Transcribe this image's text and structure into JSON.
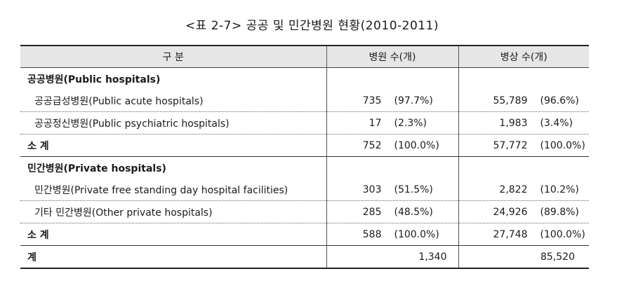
{
  "title": "<표 2-7> 공공 및 민간병원 현황(2010-2011)",
  "headers": {
    "category": "구 분",
    "hospitals": "병원 수(개)",
    "beds": "병상 수(개)"
  },
  "public": {
    "section_label": "공공병원(Public hospitals)",
    "rows": [
      {
        "label": "공공급성병원(Public acute hospitals)",
        "hosp": "735",
        "hosp_pct": "(97.7%)",
        "beds": "55,789",
        "beds_pct": "(96.6%)"
      },
      {
        "label": "공공정신병원(Public psychiatric hospitals)",
        "hosp": "17",
        "hosp_pct": "(2.3%)",
        "beds": "1,983",
        "beds_pct": "(3.4%)"
      }
    ],
    "subtotal": {
      "label": "소 계",
      "hosp": "752",
      "hosp_pct": "(100.0%)",
      "beds": "57,772",
      "beds_pct": "(100.0%)"
    }
  },
  "private": {
    "section_label": "민간병원(Private hospitals)",
    "rows": [
      {
        "label": "민간병원(Private free standing day hospital facilities)",
        "hosp": "303",
        "hosp_pct": "(51.5%)",
        "beds": "2,822",
        "beds_pct": "(10.2%)"
      },
      {
        "label": "기타 민간병원(Other private hospitals)",
        "hosp": "285",
        "hosp_pct": "(48.5%)",
        "beds": "24,926",
        "beds_pct": "(89.8%)"
      }
    ],
    "subtotal": {
      "label": "소 계",
      "hosp": "588",
      "hosp_pct": "(100.0%)",
      "beds": "27,748",
      "beds_pct": "(100.0%)"
    }
  },
  "total": {
    "label": "계",
    "hosp": "1,340",
    "beds": "85,520"
  }
}
